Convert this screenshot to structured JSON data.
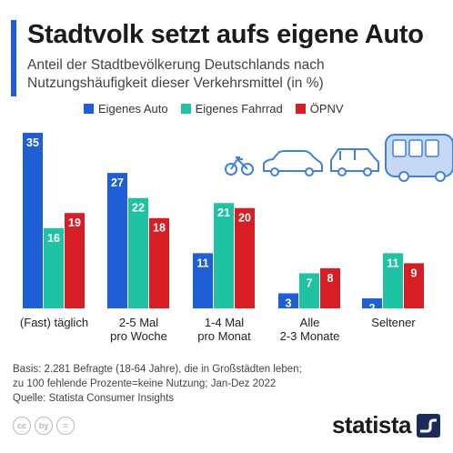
{
  "title": "Stadtvolk setzt aufs eigene Auto",
  "subtitle": "Anteil der Stadtbevölkerung Deutschlands nach Nutzungshäufigkeit dieser Verkehrsmittel (in %)",
  "colors": {
    "accent": "#1f5fd6",
    "auto": "#1f5fd6",
    "fahrrad": "#1fc3a3",
    "oepnv": "#d81e25"
  },
  "chart_data": {
    "type": "bar",
    "categories": [
      "(Fast) täglich",
      "2-5 Mal\npro Woche",
      "1-4 Mal\npro Monat",
      "Alle\n2-3 Monate",
      "Seltener"
    ],
    "series": [
      {
        "name": "Eigenes Auto",
        "values": [
          35,
          27,
          11,
          3,
          2
        ]
      },
      {
        "name": "Eigenes Fahrrad",
        "values": [
          16,
          22,
          21,
          7,
          11
        ]
      },
      {
        "name": "ÖPNV",
        "values": [
          19,
          18,
          20,
          8,
          9
        ]
      }
    ],
    "ylim": [
      0,
      35
    ],
    "legend_position": "top",
    "grid": false
  },
  "icons": [
    "bicycle-icon",
    "car-icon",
    "suv-icon",
    "bus-icon"
  ],
  "footnote": {
    "line1": "Basis: 2.281 Befragte (18-64 Jahre), die in Großstädten leben;",
    "line2": "zu 100 fehlende Prozente=keine Nutzung; Jan-Dez 2022",
    "line3": "Quelle: Statista Consumer Insights"
  },
  "license_icons": [
    "cc",
    "by",
    "="
  ],
  "brand": "statista"
}
